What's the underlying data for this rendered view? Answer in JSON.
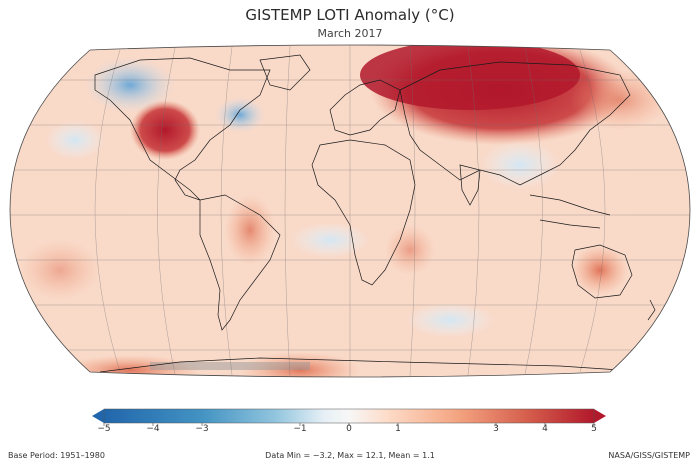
{
  "header": {
    "title": "GISTEMP LOTI Anomaly (°C)",
    "subtitle": "March 2017"
  },
  "colorbar": {
    "ticks": [
      "−5",
      "−4",
      "−3",
      "−1",
      "0",
      "1",
      "3",
      "4",
      "5"
    ],
    "tick_values": [
      -5,
      -4,
      -3,
      -1,
      0,
      1,
      3,
      4,
      5
    ],
    "colors": [
      "#2166ac",
      "#4393c3",
      "#92c5de",
      "#d1e5f0",
      "#f7f7f7",
      "#fddbc7",
      "#f4a582",
      "#d6604d",
      "#b2182b"
    ]
  },
  "footer": {
    "base_period": "Base Period: 1951–1980",
    "stats": "Data Min = −3.2, Max = 12.1, Mean = 1.1",
    "source": "NASA/GISS/GISTEMP"
  }
}
